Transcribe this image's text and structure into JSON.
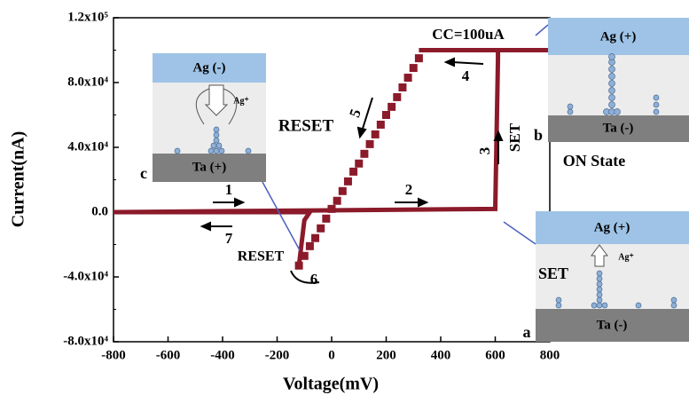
{
  "chart_data": {
    "type": "line",
    "xlabel": "Voltage(mV)",
    "ylabel": "Current(nA)",
    "xlim": [
      -800,
      800
    ],
    "ylim": [
      -80000,
      120000
    ],
    "xticks": [
      -800,
      -600,
      -400,
      -200,
      0,
      200,
      400,
      600,
      800
    ],
    "yticks": [
      {
        "value": -80000,
        "label": "-8.0x10⁴"
      },
      {
        "value": -40000,
        "label": "-4.0x10⁴"
      },
      {
        "value": 0,
        "label": "0.0"
      },
      {
        "value": 40000,
        "label": "4.0x10⁴"
      },
      {
        "value": 80000,
        "label": "8.0x10⁴"
      },
      {
        "value": 120000,
        "label": "1.2x10⁵"
      }
    ],
    "series": [
      {
        "color": "#8b1a2a",
        "x": [
          -800,
          600,
          610,
          610,
          800,
          320
        ],
        "values": [
          0,
          2000,
          95000,
          100000,
          100000,
          100000
        ]
      },
      {
        "color": "#8b1a2a",
        "marker": "square",
        "x": [
          320,
          300,
          280,
          260,
          240,
          220,
          200,
          180,
          160,
          140,
          120,
          100,
          80,
          60,
          40,
          20,
          0,
          -20,
          -40,
          -60,
          -80,
          -100,
          -120
        ],
        "values": [
          95000,
          89000,
          83000,
          77000,
          71000,
          65000,
          60000,
          54000,
          48000,
          42000,
          36000,
          30000,
          25000,
          19000,
          13000,
          7000,
          2000,
          -4000,
          -10000,
          -16000,
          -21000,
          -27000,
          -33000
        ]
      },
      {
        "color": "#8b1a2a",
        "x": [
          -120,
          -100,
          -80,
          -800
        ],
        "values": [
          -33000,
          -5000,
          0,
          0
        ]
      }
    ],
    "annotations": [
      "CC=100uA",
      "1",
      "2",
      "3",
      "4",
      "5",
      "6",
      "7",
      "SET",
      "RESET",
      "RESET",
      "a",
      "b",
      "c",
      "ON State"
    ],
    "insets": {
      "c": {
        "top": "Ag (-)",
        "bottom": "Ta (+)",
        "ion": "Ag⁺"
      },
      "b": {
        "top": "Ag (+)",
        "bottom": "Ta (-)"
      },
      "a": {
        "top": "Ag (+)",
        "bottom": "Ta (-)",
        "ion": "Ag⁺",
        "label": "SET"
      }
    }
  }
}
